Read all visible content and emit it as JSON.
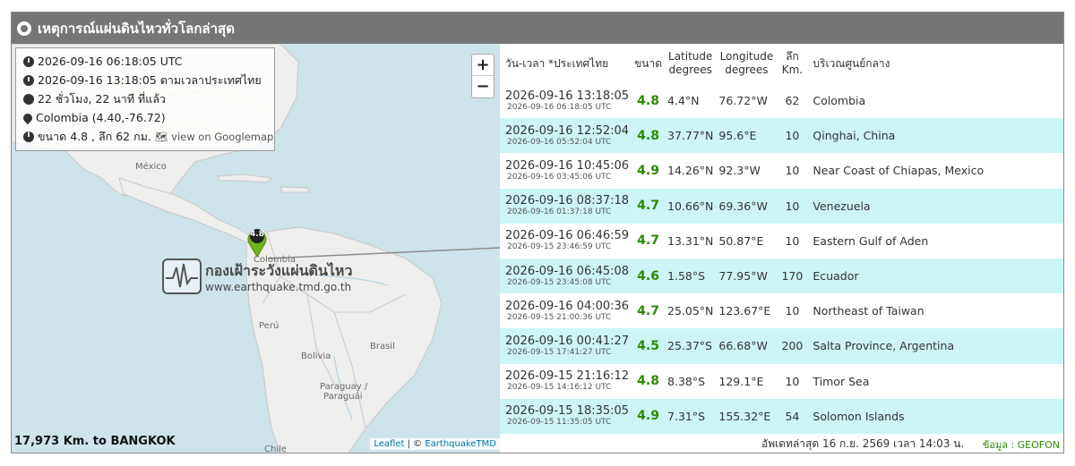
{
  "header": {
    "title": "เหตุการณ์แผ่นดินไหวทั่วโลกล่าสุด"
  },
  "info": {
    "utc_time": "2026-09-16 06:18:05 UTC",
    "thai_time": "2026-09-16 13:18:05 ตามเวลาประเทศไทย",
    "elapsed": "22 ชั่วโมง, 22 นาที ที่แล้ว",
    "location": "Colombia (4.40,-76.72)",
    "magdepth": "ขนาด 4.8 , ลึก 62 กม.",
    "googlemap_link": "view on Googlemap"
  },
  "map": {
    "zoom_in": "+",
    "zoom_out": "−",
    "marker_value": "4.8",
    "labels": {
      "mexico": "México",
      "colombia": "Colombia",
      "peru": "Perú",
      "brasil": "Brasil",
      "bolivia": "Bolivia",
      "paraguay": "Paraguay /",
      "paraguai": "Paraguái",
      "chile": "Chile"
    },
    "distance": "17,973 Km. to BANGKOK",
    "attribution_leaflet": "Leaflet",
    "attribution_sep": " | © ",
    "attribution_tmd": "EarthquakeTMD",
    "watermark_title": "กองเฝ้าระวังแผ่นดินไหว",
    "watermark_url": "www.earthquake.tmd.go.th"
  },
  "table": {
    "headers": {
      "time": "วัน-เวลา *ประเทศไทย",
      "mag": "ขนาด",
      "lat1": "Latitude",
      "lat2": "degrees",
      "lon1": "Longitude",
      "lon2": "degrees",
      "dep1": "ลึก",
      "dep2": "Km.",
      "region": "บริเวณศูนย์กลาง"
    },
    "rows": [
      {
        "time": "2026-09-16 13:18:05",
        "utc": "2026-09-16 06:18:05 UTC",
        "mag": "4.8",
        "lat": "4.4°N",
        "lon": "76.72°W",
        "depth": "62",
        "region": "Colombia"
      },
      {
        "time": "2026-09-16 12:52:04",
        "utc": "2026-09-16 05:52:04 UTC",
        "mag": "4.8",
        "lat": "37.77°N",
        "lon": "95.6°E",
        "depth": "10",
        "region": "Qinghai, China"
      },
      {
        "time": "2026-09-16 10:45:06",
        "utc": "2026-09-16 03:45:06 UTC",
        "mag": "4.9",
        "lat": "14.26°N",
        "lon": "92.3°W",
        "depth": "10",
        "region": "Near Coast of Chiapas, Mexico"
      },
      {
        "time": "2026-09-16 08:37:18",
        "utc": "2026-09-16 01:37:18 UTC",
        "mag": "4.7",
        "lat": "10.66°N",
        "lon": "69.36°W",
        "depth": "10",
        "region": "Venezuela"
      },
      {
        "time": "2026-09-16 06:46:59",
        "utc": "2026-09-15 23:46:59 UTC",
        "mag": "4.7",
        "lat": "13.31°N",
        "lon": "50.87°E",
        "depth": "10",
        "region": "Eastern Gulf of Aden"
      },
      {
        "time": "2026-09-16 06:45:08",
        "utc": "2026-09-15 23:45:08 UTC",
        "mag": "4.6",
        "lat": "1.58°S",
        "lon": "77.95°W",
        "depth": "170",
        "region": "Ecuador"
      },
      {
        "time": "2026-09-16 04:00:36",
        "utc": "2026-09-15 21:00:36 UTC",
        "mag": "4.7",
        "lat": "25.05°N",
        "lon": "123.67°E",
        "depth": "10",
        "region": "Northeast of Taiwan"
      },
      {
        "time": "2026-09-16 00:41:27",
        "utc": "2026-09-15 17:41:27 UTC",
        "mag": "4.5",
        "lat": "25.37°S",
        "lon": "66.68°W",
        "depth": "200",
        "region": "Salta Province, Argentina"
      },
      {
        "time": "2026-09-15 21:16:12",
        "utc": "2026-09-15 14:16:12 UTC",
        "mag": "4.8",
        "lat": "8.38°S",
        "lon": "129.1°E",
        "depth": "10",
        "region": "Timor Sea"
      },
      {
        "time": "2026-09-15 18:35:05",
        "utc": "2026-09-15 11:35:05 UTC",
        "mag": "4.9",
        "lat": "7.31°S",
        "lon": "155.32°E",
        "depth": "54",
        "region": "Solomon Islands"
      }
    ]
  },
  "footer": {
    "updated": "อัพเดทล่าสุด 16 ก.ย. 2569 เวลา 14:03 น.",
    "source": "ข้อมูล : GEOFON"
  },
  "colors": {
    "header_bg": "#767676",
    "row_alt": "#cdf5f5",
    "magnitude": "#2a8a00",
    "marker": "#6fb21d"
  }
}
